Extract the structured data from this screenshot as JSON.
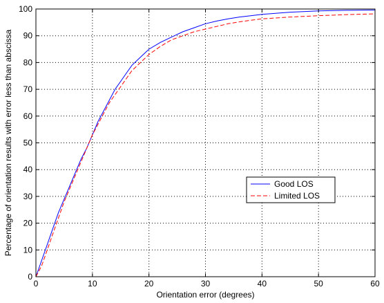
{
  "chart_data": {
    "type": "line",
    "xlabel": "Orientation error (degrees)",
    "ylabel": "Percentage of orientation results with error less than abscissa",
    "xlim": [
      0,
      60
    ],
    "ylim": [
      0,
      100
    ],
    "xticks": [
      0,
      10,
      20,
      30,
      40,
      50,
      60
    ],
    "yticks": [
      0,
      10,
      20,
      30,
      40,
      50,
      60,
      70,
      80,
      90,
      100
    ],
    "grid": true,
    "legend_position": "center-right",
    "series": [
      {
        "name": "Good LOS",
        "color": "#0000ff",
        "dash": "solid",
        "x": [
          0,
          1,
          2,
          3,
          4,
          5,
          6,
          7,
          8,
          9,
          10,
          11,
          12,
          13,
          14,
          15,
          16,
          17,
          18,
          19,
          20,
          22,
          24,
          26,
          28,
          30,
          32,
          34,
          36,
          38,
          40,
          45,
          50,
          55,
          60
        ],
        "y": [
          0,
          6,
          12,
          18,
          24,
          29,
          34,
          39,
          44,
          48,
          53,
          58,
          62,
          66,
          70,
          73,
          76,
          79,
          81,
          83,
          85,
          87.5,
          89.5,
          91.5,
          93,
          94.5,
          95.5,
          96.3,
          97,
          97.5,
          98,
          98.8,
          99.3,
          99.5,
          99.6
        ]
      },
      {
        "name": "Limited LOS",
        "color": "#ff0000",
        "dash": "dashed",
        "x": [
          0,
          1,
          2,
          3,
          4,
          5,
          6,
          7,
          8,
          9,
          10,
          11,
          12,
          13,
          14,
          15,
          16,
          17,
          18,
          19,
          20,
          22,
          24,
          26,
          28,
          30,
          32,
          34,
          36,
          38,
          40,
          45,
          50,
          55,
          60
        ],
        "y": [
          0,
          4,
          10,
          16,
          22,
          28,
          33,
          38,
          43,
          48,
          53,
          57,
          61,
          65,
          68,
          71,
          74,
          77,
          79,
          81,
          83,
          86,
          88.5,
          90,
          91.5,
          92.5,
          93.5,
          94.5,
          95.2,
          95.8,
          96.3,
          97,
          97.5,
          97.9,
          98.2
        ]
      }
    ]
  }
}
